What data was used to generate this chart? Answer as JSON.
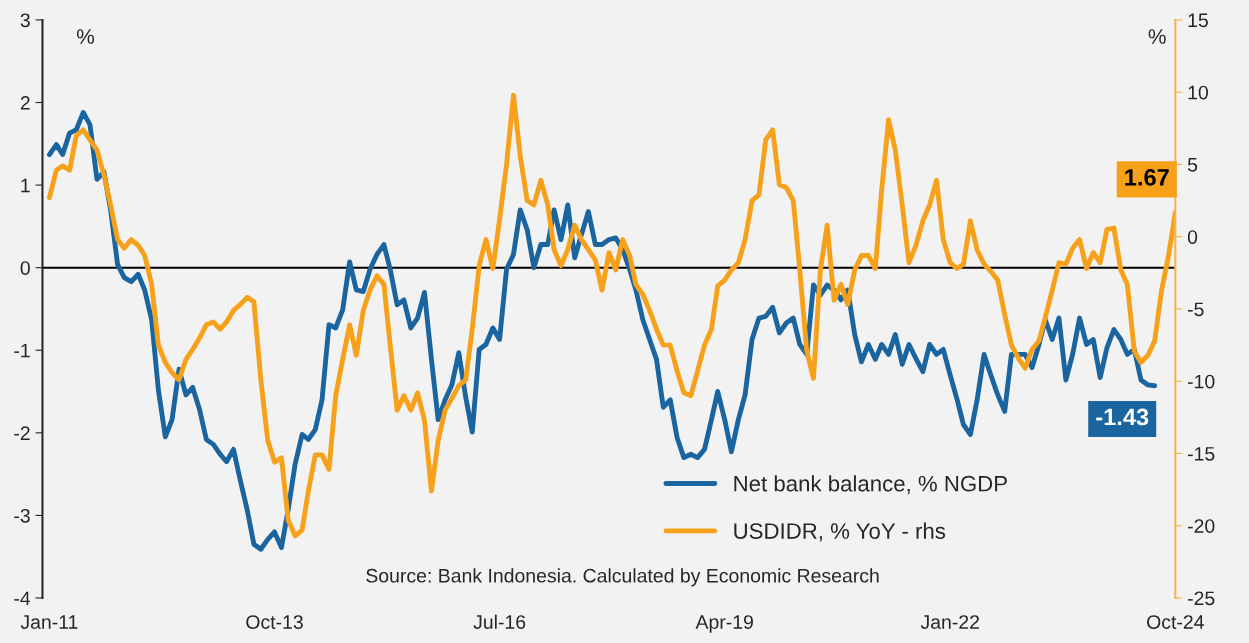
{
  "chart_data": {
    "type": "line",
    "x": [
      "2011-01",
      "2011-02",
      "2011-03",
      "2011-04",
      "2011-05",
      "2011-06",
      "2011-07",
      "2011-08",
      "2011-09",
      "2011-10",
      "2011-11",
      "2011-12",
      "2012-01",
      "2012-02",
      "2012-03",
      "2012-04",
      "2012-05",
      "2012-06",
      "2012-07",
      "2012-08",
      "2012-09",
      "2012-10",
      "2012-11",
      "2012-12",
      "2013-01",
      "2013-02",
      "2013-03",
      "2013-04",
      "2013-05",
      "2013-06",
      "2013-07",
      "2013-08",
      "2013-09",
      "2013-10",
      "2013-11",
      "2013-12",
      "2014-01",
      "2014-02",
      "2014-03",
      "2014-04",
      "2014-05",
      "2014-06",
      "2014-07",
      "2014-08",
      "2014-09",
      "2014-10",
      "2014-11",
      "2014-12",
      "2015-01",
      "2015-02",
      "2015-03",
      "2015-04",
      "2015-05",
      "2015-06",
      "2015-07",
      "2015-08",
      "2015-09",
      "2015-10",
      "2015-11",
      "2015-12",
      "2016-01",
      "2016-02",
      "2016-03",
      "2016-04",
      "2016-05",
      "2016-06",
      "2016-07",
      "2016-08",
      "2016-09",
      "2016-10",
      "2016-11",
      "2016-12",
      "2017-01",
      "2017-02",
      "2017-03",
      "2017-04",
      "2017-05",
      "2017-06",
      "2017-07",
      "2017-08",
      "2017-09",
      "2017-10",
      "2017-11",
      "2017-12",
      "2018-01",
      "2018-02",
      "2018-03",
      "2018-04",
      "2018-05",
      "2018-06",
      "2018-07",
      "2018-08",
      "2018-09",
      "2018-10",
      "2018-11",
      "2018-12",
      "2019-01",
      "2019-02",
      "2019-03",
      "2019-04",
      "2019-05",
      "2019-06",
      "2019-07",
      "2019-08",
      "2019-09",
      "2019-10",
      "2019-11",
      "2019-12",
      "2020-01",
      "2020-02",
      "2020-03",
      "2020-04",
      "2020-05",
      "2020-06",
      "2020-07",
      "2020-08",
      "2020-09",
      "2020-10",
      "2020-11",
      "2020-12",
      "2021-01",
      "2021-02",
      "2021-03",
      "2021-04",
      "2021-05",
      "2021-06",
      "2021-07",
      "2021-08",
      "2021-09",
      "2021-10",
      "2021-11",
      "2021-12",
      "2022-01",
      "2022-02",
      "2022-03",
      "2022-04",
      "2022-05",
      "2022-06",
      "2022-07",
      "2022-08",
      "2022-09",
      "2022-10",
      "2022-11",
      "2022-12",
      "2023-01",
      "2023-02",
      "2023-03",
      "2023-04",
      "2023-05",
      "2023-06",
      "2023-07",
      "2023-08",
      "2023-09",
      "2023-10",
      "2023-11",
      "2023-12",
      "2024-01",
      "2024-02",
      "2024-03",
      "2024-04",
      "2024-05",
      "2024-06",
      "2024-07",
      "2024-08",
      "2024-09",
      "2024-10"
    ],
    "series": [
      {
        "name": "Net bank balance, % NGDP",
        "color": "#1a64a0",
        "values": [
          1.37,
          1.49,
          1.37,
          1.63,
          1.67,
          1.88,
          1.73,
          1.07,
          1.16,
          0.7,
          0.04,
          -0.12,
          -0.17,
          -0.08,
          -0.27,
          -0.63,
          -1.48,
          -2.05,
          -1.84,
          -1.23,
          -1.54,
          -1.45,
          -1.72,
          -2.08,
          -2.14,
          -2.26,
          -2.35,
          -2.2,
          -2.57,
          -2.93,
          -3.35,
          -3.41,
          -3.29,
          -3.2,
          -3.39,
          -2.93,
          -2.38,
          -2.02,
          -2.08,
          -1.96,
          -1.6,
          -0.69,
          -0.73,
          -0.51,
          0.07,
          -0.27,
          -0.29,
          -0.02,
          0.16,
          0.28,
          -0.02,
          -0.45,
          -0.39,
          -0.73,
          -0.61,
          -0.3,
          -1.11,
          -1.84,
          -1.6,
          -1.42,
          -1.03,
          -1.57,
          -1.99,
          -0.99,
          -0.93,
          -0.73,
          -0.87,
          -0.02,
          0.16,
          0.7,
          0.46,
          0,
          0.28,
          0.28,
          0.7,
          0.34,
          0.76,
          0.12,
          0.4,
          0.68,
          0.28,
          0.28,
          0.34,
          0.36,
          0.22,
          -0.02,
          -0.27,
          -0.63,
          -0.87,
          -1.11,
          -1.69,
          -1.6,
          -2.06,
          -2.3,
          -2.26,
          -2.3,
          -2.2,
          -1.84,
          -1.5,
          -1.84,
          -2.23,
          -1.84,
          -1.54,
          -0.87,
          -0.61,
          -0.59,
          -0.48,
          -0.79,
          -0.67,
          -0.61,
          -0.93,
          -1.05,
          -0.21,
          -0.33,
          -0.21,
          -0.27,
          -0.39,
          -0.27,
          -0.81,
          -1.14,
          -0.93,
          -1.11,
          -0.93,
          -1.05,
          -0.81,
          -1.17,
          -0.93,
          -1.1,
          -1.26,
          -0.93,
          -1.05,
          -0.99,
          -1.3,
          -1.6,
          -1.9,
          -2.02,
          -1.6,
          -1.05,
          -1.3,
          -1.54,
          -1.74,
          -1.05,
          -1.05,
          -1.05,
          -1.21,
          -0.93,
          -0.63,
          -0.87,
          -0.61,
          -1.36,
          -1.05,
          -0.61,
          -0.93,
          -0.87,
          -1.33,
          -0.97,
          -0.75,
          -0.87,
          -1.05,
          -0.99,
          -1.36,
          -1.42,
          -1.43,
          null,
          null,
          null
        ]
      },
      {
        "name": "USDIDR, % YoY - rhs",
        "color": "#f7a01a",
        "axis": "y2",
        "values": [
          2.7,
          4.6,
          4.9,
          4.6,
          7.0,
          7.4,
          6.7,
          6.0,
          4.3,
          2.2,
          -0.2,
          -0.8,
          -0.2,
          -0.6,
          -1.3,
          -3.3,
          -7.5,
          -8.7,
          -9.4,
          -9.9,
          -8.5,
          -7.8,
          -7.0,
          -6.1,
          -5.9,
          -6.4,
          -5.9,
          -5.1,
          -4.7,
          -4.2,
          -4.5,
          -9.9,
          -14.1,
          -15.6,
          -15.3,
          -19.6,
          -20.7,
          -20.3,
          -17.6,
          -15.1,
          -15.1,
          -16.1,
          -11.0,
          -8.5,
          -6.1,
          -8.2,
          -5.1,
          -3.7,
          -2.7,
          -3.3,
          -7.5,
          -12.0,
          -11.0,
          -12.0,
          -10.8,
          -12.7,
          -17.6,
          -14.1,
          -12.0,
          -11.2,
          -10.3,
          -9.9,
          -6.4,
          -2.0,
          -0.2,
          -2.2,
          1.2,
          5.0,
          9.8,
          5.6,
          2.5,
          2.2,
          3.9,
          2.2,
          -0.9,
          -2.0,
          -0.9,
          0.8,
          -0.2,
          -0.9,
          -1.6,
          -3.7,
          -1.1,
          -2.3,
          -0.2,
          -1.3,
          -3.3,
          -4.0,
          -5.1,
          -6.4,
          -7.5,
          -7.5,
          -9.3,
          -10.8,
          -11.0,
          -9.3,
          -7.5,
          -6.4,
          -3.4,
          -3.0,
          -2.3,
          -1.8,
          -0.2,
          2.5,
          2.9,
          6.7,
          7.4,
          3.6,
          3.4,
          2.5,
          -2.3,
          -7.9,
          -9.8,
          -2.3,
          0.8,
          -4.4,
          -3.3,
          -4.7,
          -2.3,
          -1.3,
          -1.3,
          -2.2,
          3.2,
          8.1,
          6.0,
          2.2,
          -1.8,
          -0.6,
          1.1,
          2.2,
          3.9,
          -0.2,
          -1.8,
          -2.2,
          -1.9,
          1.1,
          -0.9,
          -1.9,
          -2.4,
          -3.0,
          -5.4,
          -7.5,
          -8.4,
          -9.1,
          -7.8,
          -7.2,
          -5.6,
          -3.7,
          -1.8,
          -1.9,
          -0.8,
          -0.2,
          -2.2,
          -1.1,
          -1.8,
          0.5,
          0.6,
          -2.3,
          -3.3,
          -7.9,
          -8.7,
          -8.2,
          -7.2,
          -3.7,
          -1.3,
          1.67
        ]
      }
    ],
    "xlim": [
      "2010-12",
      "2024-10"
    ],
    "xticks": [
      {
        "value": "2011-01",
        "label": "Jan-11"
      },
      {
        "value": "2013-10",
        "label": "Oct-13"
      },
      {
        "value": "2016-07",
        "label": "Jul-16"
      },
      {
        "value": "2019-04",
        "label": "Apr-19"
      },
      {
        "value": "2022-01",
        "label": "Jan-22"
      },
      {
        "value": "2024-10",
        "label": "Oct-24"
      }
    ],
    "ylim": [
      -4,
      3
    ],
    "yticks": [
      -4,
      -3,
      -2,
      -1,
      0,
      1,
      2,
      3
    ],
    "y2lim": [
      -25,
      15
    ],
    "y2ticks": [
      -25,
      -20,
      -15,
      -10,
      -5,
      0,
      5,
      10,
      15
    ],
    "ylabel": "%",
    "y2label": "%",
    "ref_lines": [
      {
        "axis": "y",
        "value": 0,
        "color": "#000000"
      }
    ],
    "annotations": [
      "Source: Bank Indonesia. Calculated by Economic Research",
      "-1.43",
      "1.67"
    ],
    "legend": "bottom right",
    "grid": false
  }
}
